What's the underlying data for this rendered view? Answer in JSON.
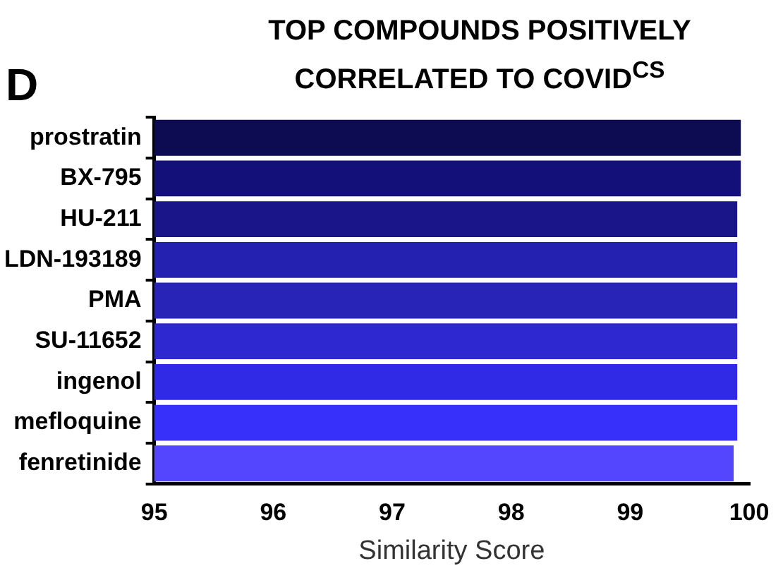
{
  "chart_data": {
    "type": "bar",
    "orientation": "horizontal",
    "title": "TOP COMPOUNDS POSITIVELY CORRELATED TO COVID$^{CS}$",
    "xlabel": "Similarity Score",
    "annotations": [
      "D"
    ],
    "categories": [
      "prostratin",
      "BX-795",
      "HU-211",
      "LDN-193189",
      "PMA",
      "SU-11652",
      "ingenol",
      "mefloquine",
      "fenretinide"
    ],
    "values": [
      99.93,
      99.93,
      99.9,
      99.9,
      99.9,
      99.9,
      99.9,
      99.9,
      99.87
    ],
    "colors": [
      "#0d0b52",
      "#14107a",
      "#1a168a",
      "#2420b0",
      "#2824b8",
      "#2e28d0",
      "#3029e6",
      "#3630fa",
      "#5446ff"
    ],
    "xlim": [
      95,
      100
    ],
    "xticks": [
      95,
      96,
      97,
      98,
      99,
      100
    ],
    "grid": false,
    "legend": false
  }
}
